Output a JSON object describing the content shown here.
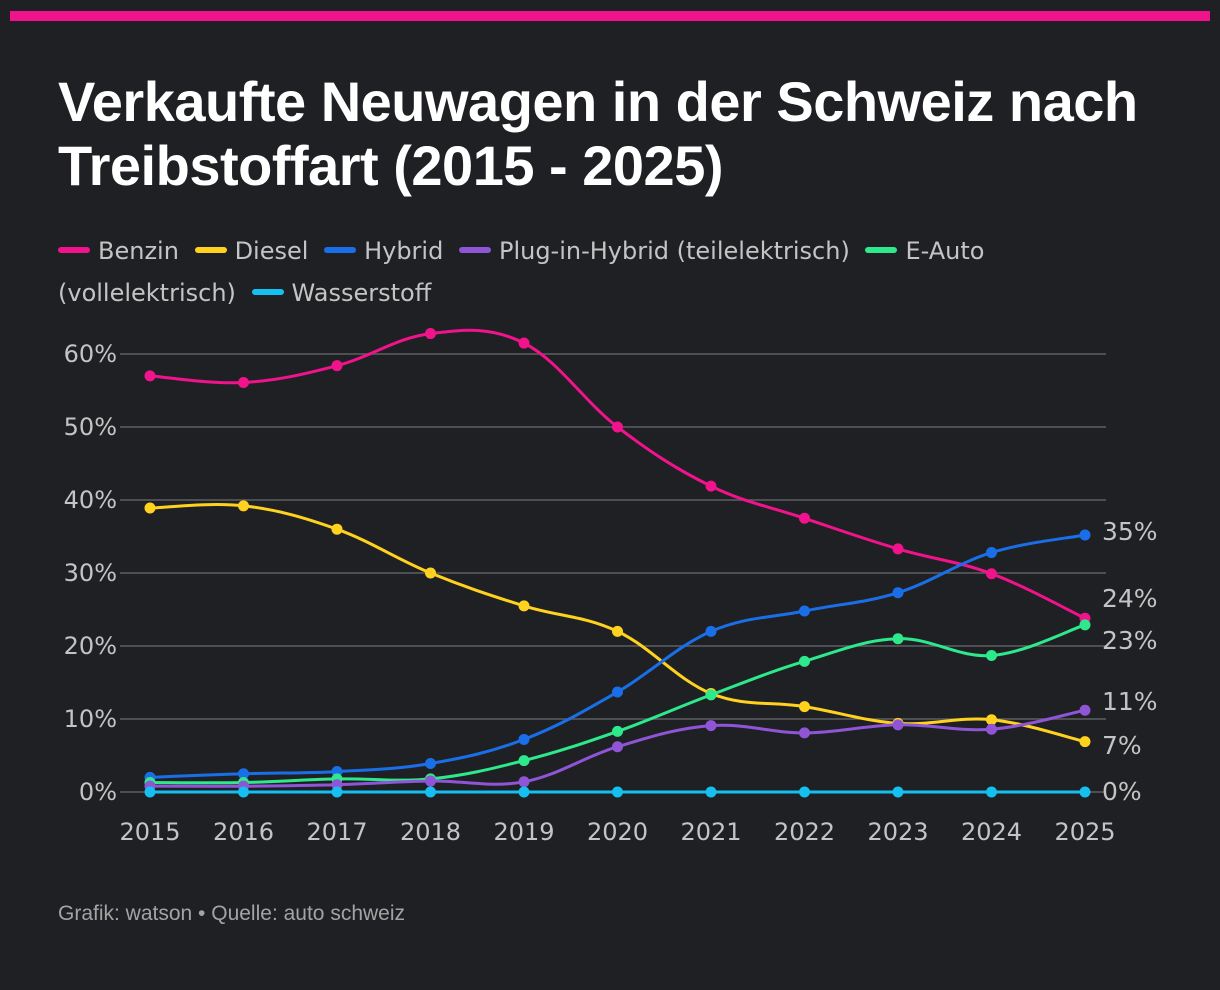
{
  "title": "Verkaufte Neuwagen in der Schweiz nach Treibstoffart (2015 - 2025)",
  "footer": "Grafik: watson • Quelle: auto schweiz",
  "colors": {
    "background": "#1f2023",
    "accent_bar": "#f0138c",
    "grid": "#5e5f63",
    "axis_text": "#c4c4c4"
  },
  "chart_data": {
    "type": "line",
    "x": [
      "2015",
      "2016",
      "2017",
      "2018",
      "2019",
      "2020",
      "2021",
      "2022",
      "2023",
      "2024",
      "2025"
    ],
    "ylim": [
      0,
      60
    ],
    "yticks": [
      {
        "value": 0,
        "label": "0%"
      },
      {
        "value": 10,
        "label": "10%"
      },
      {
        "value": 20,
        "label": "20%"
      },
      {
        "value": 30,
        "label": "30%"
      },
      {
        "value": 40,
        "label": "40%"
      },
      {
        "value": 50,
        "label": "50%"
      },
      {
        "value": 60,
        "label": "60%"
      }
    ],
    "legend_position": "top",
    "grid": true,
    "series": [
      {
        "name": "Benzin",
        "color": "#f0138c",
        "values": [
          57.0,
          56.1,
          58.4,
          62.8,
          61.5,
          50.0,
          41.9,
          37.5,
          33.3,
          29.9,
          23.8
        ],
        "end_label": "24%"
      },
      {
        "name": "Diesel",
        "color": "#ffd21f",
        "values": [
          38.9,
          39.2,
          36.0,
          30.0,
          25.5,
          22.0,
          13.5,
          11.7,
          9.4,
          9.9,
          6.9
        ],
        "end_label": "7%"
      },
      {
        "name": "Hybrid",
        "color": "#1a6fe8",
        "values": [
          2.0,
          2.5,
          2.8,
          3.9,
          7.2,
          13.7,
          22.0,
          24.8,
          27.3,
          32.8,
          35.2
        ],
        "end_label": "35%"
      },
      {
        "name": "Plug-in-Hybrid (teilelektrisch)",
        "color": "#8f55d6",
        "values": [
          0.8,
          0.8,
          1.0,
          1.5,
          1.4,
          6.2,
          9.1,
          8.1,
          9.2,
          8.6,
          11.2
        ],
        "end_label": "11%"
      },
      {
        "name": "E-Auto (vollelektrisch)",
        "color": "#2ee88c",
        "values": [
          1.3,
          1.3,
          1.8,
          1.8,
          4.3,
          8.3,
          13.3,
          17.9,
          21.0,
          18.7,
          22.9
        ],
        "end_label": "23%"
      },
      {
        "name": "Wasserstoff",
        "color": "#15c0f0",
        "values": [
          0,
          0,
          0,
          0,
          0,
          0,
          0,
          0,
          0,
          0,
          0
        ],
        "end_label": "0%"
      }
    ]
  }
}
